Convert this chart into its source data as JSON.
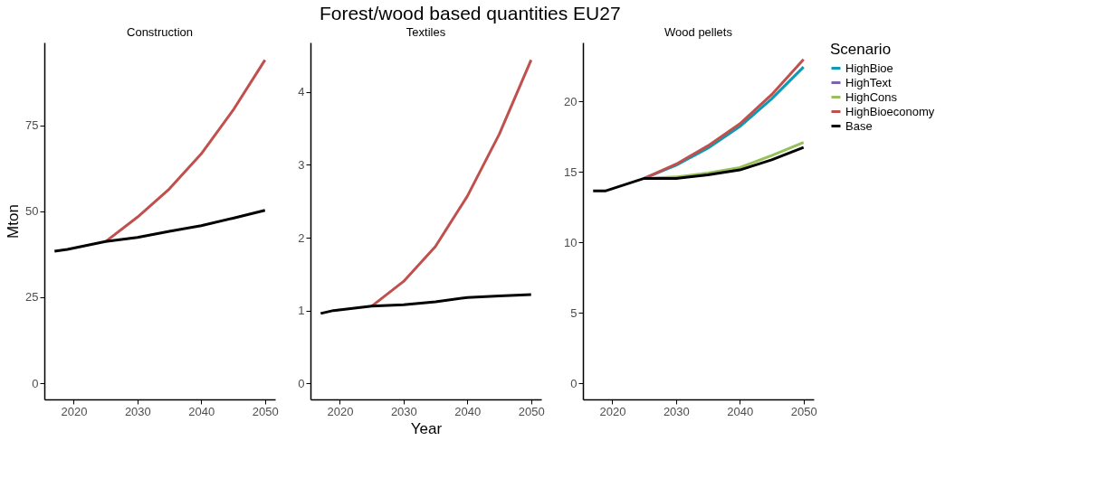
{
  "chart_data": [
    {
      "type": "line",
      "title": "Construction",
      "ylabel": "Mton",
      "annotations": [
        "Forest/wood based quantities EU27"
      ],
      "x": [
        2017,
        2019,
        2025,
        2030,
        2035,
        2040,
        2045,
        2050
      ],
      "xlim": [
        2015.4,
        2051.6
      ],
      "xticks": [
        2020,
        2030,
        2040,
        2050
      ],
      "ylim": [
        -4.7,
        99.1
      ],
      "yticks": [
        0,
        25,
        50,
        75
      ],
      "grid": false,
      "series": [
        {
          "color": "#c0504d",
          "values": [
            null,
            null,
            41.2,
            48.3,
            56.5,
            66.7,
            79.4,
            94.0
          ]
        },
        {
          "color": "#000000",
          "values": [
            38.4,
            38.9,
            41.2,
            42.4,
            44.2,
            45.8,
            48.0,
            50.3
          ]
        }
      ]
    },
    {
      "type": "line",
      "title": "Textiles",
      "xlabel": "Year",
      "x": [
        2017,
        2019,
        2025,
        2030,
        2035,
        2040,
        2045,
        2050
      ],
      "xlim": [
        2015.4,
        2051.6
      ],
      "xticks": [
        2020,
        2030,
        2040,
        2050
      ],
      "ylim": [
        -0.22,
        4.68
      ],
      "yticks": [
        0,
        1,
        2,
        3,
        4
      ],
      "grid": false,
      "series": [
        {
          "color": "#c0504d",
          "values": [
            null,
            null,
            1.06,
            1.4,
            1.88,
            2.57,
            3.42,
            4.44
          ]
        },
        {
          "color": "#000000",
          "values": [
            0.96,
            1.0,
            1.06,
            1.08,
            1.12,
            1.18,
            1.2,
            1.22
          ]
        }
      ]
    },
    {
      "type": "line",
      "title": "Wood pellets",
      "legend_title": "Scenario",
      "x": [
        2017,
        2019,
        2025,
        2030,
        2035,
        2040,
        2045,
        2050
      ],
      "xlim": [
        2015.4,
        2051.6
      ],
      "xticks": [
        2020,
        2030,
        2040,
        2050
      ],
      "ylim": [
        -1.14,
        24.2
      ],
      "yticks": [
        0,
        5,
        10,
        15,
        20
      ],
      "grid": false,
      "legend": "right",
      "series": [
        {
          "name": "HighBioe",
          "color": "#0a9bb5",
          "values": [
            null,
            null,
            14.55,
            15.48,
            16.7,
            18.23,
            20.2,
            22.46
          ]
        },
        {
          "name": "HighText",
          "color": "#7e62ad",
          "values": [
            null,
            null,
            null,
            null,
            null,
            null,
            null,
            null
          ]
        },
        {
          "name": "HighCons",
          "color": "#95c05a",
          "values": [
            null,
            null,
            14.55,
            14.65,
            14.93,
            15.32,
            16.17,
            17.1
          ]
        },
        {
          "name": "HighBioeconomy",
          "color": "#c0504d",
          "values": [
            null,
            null,
            14.55,
            15.56,
            16.86,
            18.42,
            20.5,
            23.0
          ]
        },
        {
          "name": "Base",
          "color": "#000000",
          "values": [
            13.67,
            13.67,
            14.55,
            14.55,
            14.8,
            15.15,
            15.87,
            16.75
          ]
        }
      ]
    }
  ]
}
